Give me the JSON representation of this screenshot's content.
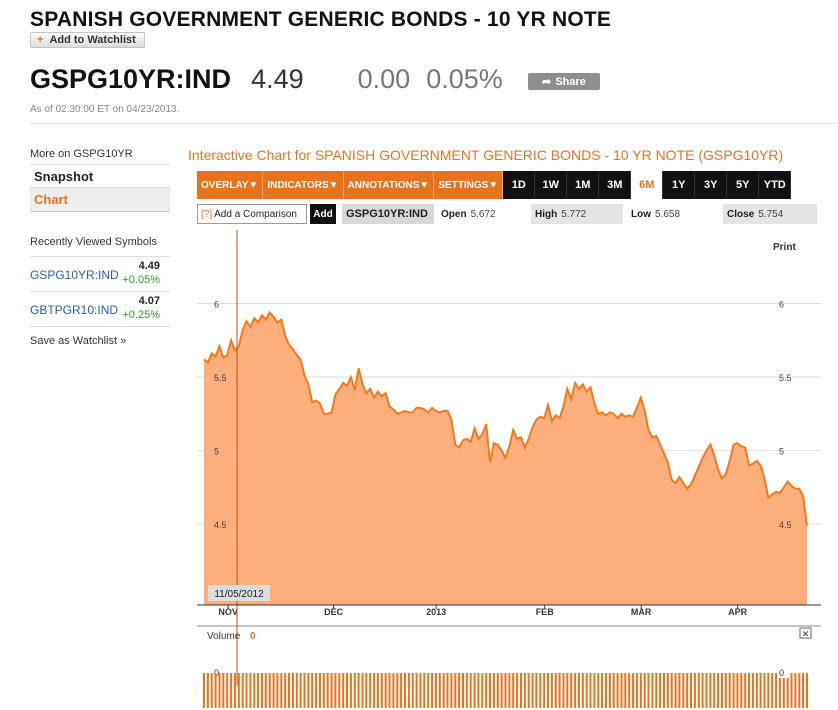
{
  "header": {
    "title": "SPANISH GOVERNMENT GENERIC BONDS - 10 YR NOTE",
    "watchlist_label": "Add to Watchlist",
    "ticker": "GSPG10YR:IND",
    "price": "4.49",
    "change": "0.00",
    "change_pct": "0.05%",
    "share_label": "Share",
    "as_of": "As of 02:30:00 ET on 04/23/2013."
  },
  "sidebar": {
    "more_on": "More on GSPG10YR",
    "items": [
      {
        "label": "Snapshot"
      },
      {
        "label": "Chart"
      }
    ],
    "recent_title": "Recently Viewed Symbols",
    "recent": [
      {
        "symbol": "GSPG10YR:IND",
        "price": "4.49",
        "change": "+0.05%"
      },
      {
        "symbol": "GBTPGR10:IND",
        "price": "4.07",
        "change": "+0.25%"
      }
    ],
    "save_watchlist": "Save as Watchlist"
  },
  "chart_panel": {
    "title": "Interactive Chart for SPANISH GOVERNMENT GENERIC BONDS - 10 YR NOTE (GSPG10YR)",
    "menus": [
      "OVERLAY",
      "INDICATORS",
      "ANNOTATIONS",
      "SETTINGS"
    ],
    "ranges": [
      "1D",
      "1W",
      "1M",
      "3M",
      "6M",
      "1Y",
      "3Y",
      "5Y",
      "YTD"
    ],
    "active_range": "6M",
    "compare_placeholder": "Add a Comparison",
    "compare_hint": "[?]",
    "add_label": "Add",
    "symbol": "GSPG10YR:IND",
    "stats": {
      "open_label": "Open",
      "open": "5.672",
      "high_label": "High",
      "high": "5.772",
      "low_label": "Low",
      "low": "5.658",
      "close_label": "Close",
      "close": "5.754"
    },
    "print_label": "Print",
    "cursor_date": "11/05/2012",
    "volume_label": "Volume",
    "volume_value": "0",
    "volume_axis_label": "0",
    "close_icon": "close-icon"
  },
  "colors": {
    "accent": "#e8731d",
    "area_fill": "#fcae7c",
    "area_line": "#f07a1e",
    "positive": "#2a9d2a",
    "link": "#2a5db0"
  },
  "chart_data": {
    "type": "area",
    "title": "",
    "xlabel": "",
    "ylabel": "",
    "x_tick_labels": [
      "NOV",
      "DEC",
      "2013",
      "FEB",
      "MAR",
      "APR"
    ],
    "y_ticks": [
      4.5,
      5,
      5.5,
      6
    ],
    "y_tick_labels": [
      "4.5",
      "5",
      "5.5",
      "6"
    ],
    "ylim": [
      3.95,
      6.5
    ],
    "grid": true,
    "series": [
      {
        "values": [
          5.62,
          5.6,
          5.66,
          5.64,
          5.71,
          5.63,
          5.65,
          5.75,
          5.68,
          5.71,
          5.82,
          5.88,
          5.84,
          5.9,
          5.87,
          5.92,
          5.89,
          5.94,
          5.91,
          5.87,
          5.89,
          5.78,
          5.72,
          5.69,
          5.65,
          5.62,
          5.51,
          5.45,
          5.33,
          5.34,
          5.32,
          5.25,
          5.25,
          5.26,
          5.38,
          5.42,
          5.46,
          5.44,
          5.5,
          5.41,
          5.56,
          5.45,
          5.39,
          5.42,
          5.36,
          5.4,
          5.37,
          5.39,
          5.3,
          5.28,
          5.25,
          5.26,
          5.27,
          5.26,
          5.26,
          5.29,
          5.29,
          5.28,
          5.26,
          5.29,
          5.27,
          5.26,
          5.27,
          5.27,
          5.21,
          5.04,
          5.02,
          5.07,
          5.08,
          5.06,
          5.15,
          5.08,
          5.11,
          5.18,
          4.92,
          5.05,
          5.04,
          5.0,
          4.95,
          5.03,
          5.14,
          5.08,
          5.09,
          5.02,
          5.08,
          5.16,
          5.21,
          5.23,
          5.22,
          5.31,
          5.2,
          5.24,
          5.22,
          5.3,
          5.42,
          5.35,
          5.46,
          5.42,
          5.45,
          5.4,
          5.43,
          5.32,
          5.25,
          5.26,
          5.24,
          5.26,
          5.25,
          5.22,
          5.25,
          5.23,
          5.24,
          5.23,
          5.29,
          5.36,
          5.27,
          5.14,
          5.09,
          5.1,
          5.04,
          4.98,
          4.92,
          4.8,
          4.78,
          4.82,
          4.78,
          4.74,
          4.77,
          4.83,
          4.89,
          4.95,
          5.0,
          5.04,
          4.97,
          4.87,
          4.81,
          4.84,
          4.93,
          5.04,
          5.05,
          5.03,
          5.02,
          4.9,
          4.91,
          4.93,
          4.9,
          4.81,
          4.68,
          4.7,
          4.72,
          4.71,
          4.75,
          4.79,
          4.76,
          4.74,
          4.74,
          4.69,
          4.49
        ]
      }
    ],
    "volume_ylim": [
      0,
      1
    ],
    "volume_values_note": "0"
  }
}
